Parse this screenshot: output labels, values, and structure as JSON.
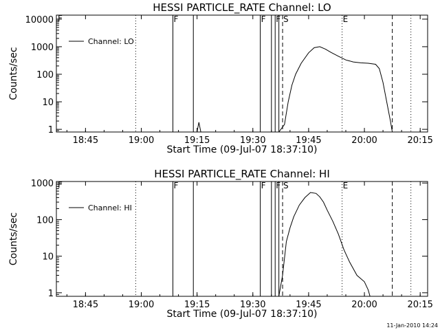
{
  "footer": {
    "timestamp": "11-Jan-2010 14:24"
  },
  "chart_data": [
    {
      "type": "line",
      "title": "HESSI PARTICLE_RATE Channel: LO",
      "xlabel": "Start Time (09-Jul-07 18:37:10)",
      "ylabel": "Counts/sec",
      "yscale": "log",
      "xlim": [
        "18:37:10",
        "20:17:00"
      ],
      "ylim": [
        0.8,
        14000
      ],
      "xticks": [
        "18:45",
        "19:00",
        "19:15",
        "19:30",
        "19:45",
        "20:00",
        "20:15"
      ],
      "yticks": [
        "1",
        "10",
        "100",
        "1000",
        "10000"
      ],
      "legend": {
        "position": "top-left",
        "entries": [
          "Channel: LO"
        ]
      },
      "series": [
        {
          "name": "Channel: LO",
          "x": [
            "18:37:10",
            "19:15:00",
            "19:15:30",
            "19:16:00",
            "19:37:00",
            "19:38:30",
            "19:39:30",
            "19:40:30",
            "19:41:30",
            "19:43:00",
            "19:45:00",
            "19:46:30",
            "19:48:00",
            "19:49:30",
            "19:51:00",
            "19:53:00",
            "19:55:00",
            "19:57:00",
            "19:59:00",
            "20:01:00",
            "20:03:00",
            "20:04:00",
            "20:05:00",
            "20:06:00",
            "20:07:00",
            "20:07:30"
          ],
          "y": [
            0.8,
            0.8,
            1.8,
            0.8,
            0.8,
            1.5,
            10,
            40,
            100,
            250,
            600,
            920,
            1000,
            820,
            620,
            450,
            330,
            280,
            260,
            250,
            230,
            160,
            50,
            10,
            2,
            0.8
          ]
        }
      ],
      "vertical_lines": [
        {
          "x": "18:58:30",
          "style": "dotted",
          "label": ""
        },
        {
          "x": "19:08:30",
          "style": "solid",
          "label": "F"
        },
        {
          "x": "19:14:00",
          "style": "solid",
          "label": ""
        },
        {
          "x": "19:32:00",
          "style": "solid",
          "label": "F"
        },
        {
          "x": "19:35:00",
          "style": "solid",
          "label": ""
        },
        {
          "x": "19:36:00",
          "style": "solid",
          "label": "F"
        },
        {
          "x": "19:37:00",
          "style": "solid",
          "label": ""
        },
        {
          "x": "19:38:00",
          "style": "dashed",
          "label": "S"
        },
        {
          "x": "19:54:00",
          "style": "dotted",
          "label": "E"
        },
        {
          "x": "20:07:30",
          "style": "dashed",
          "label": ""
        },
        {
          "x": "20:12:30",
          "style": "dotted",
          "label": ""
        }
      ],
      "top_left_marker": "F"
    },
    {
      "type": "line",
      "title": "HESSI PARTICLE_RATE Channel: HI",
      "xlabel": "Start Time (09-Jul-07 18:37:10)",
      "ylabel": "Counts/sec",
      "yscale": "log",
      "xlim": [
        "18:37:10",
        "20:17:00"
      ],
      "ylim": [
        0.8,
        1100
      ],
      "xticks": [
        "18:45",
        "19:00",
        "19:15",
        "19:30",
        "19:45",
        "20:00",
        "20:15"
      ],
      "yticks": [
        "1",
        "10",
        "100",
        "1000"
      ],
      "legend": {
        "position": "top-left",
        "entries": [
          "Channel: HI"
        ]
      },
      "series": [
        {
          "name": "Channel: HI",
          "x": [
            "18:37:10",
            "19:37:00",
            "19:38:00",
            "19:39:00",
            "19:40:00",
            "19:41:00",
            "19:42:30",
            "19:44:00",
            "19:45:30",
            "19:47:00",
            "19:48:00",
            "19:49:00",
            "19:50:00",
            "19:51:30",
            "19:53:00",
            "19:54:30",
            "19:56:00",
            "19:58:00",
            "20:00:00",
            "20:01:00",
            "20:01:30"
          ],
          "y": [
            0.8,
            0.8,
            3,
            25,
            60,
            120,
            250,
            400,
            550,
            520,
            420,
            300,
            180,
            90,
            40,
            15,
            7,
            3,
            2,
            1.2,
            0.8
          ]
        }
      ],
      "vertical_lines": [
        {
          "x": "18:58:30",
          "style": "dotted",
          "label": ""
        },
        {
          "x": "19:08:30",
          "style": "solid",
          "label": "F"
        },
        {
          "x": "19:14:00",
          "style": "solid",
          "label": ""
        },
        {
          "x": "19:32:00",
          "style": "solid",
          "label": "F"
        },
        {
          "x": "19:35:00",
          "style": "solid",
          "label": ""
        },
        {
          "x": "19:36:00",
          "style": "solid",
          "label": "F"
        },
        {
          "x": "19:37:00",
          "style": "solid",
          "label": ""
        },
        {
          "x": "19:38:00",
          "style": "dashed",
          "label": "S"
        },
        {
          "x": "19:54:00",
          "style": "dotted",
          "label": "E"
        },
        {
          "x": "20:07:30",
          "style": "dashed",
          "label": ""
        },
        {
          "x": "20:12:30",
          "style": "dotted",
          "label": ""
        }
      ],
      "top_left_marker": "F"
    }
  ]
}
